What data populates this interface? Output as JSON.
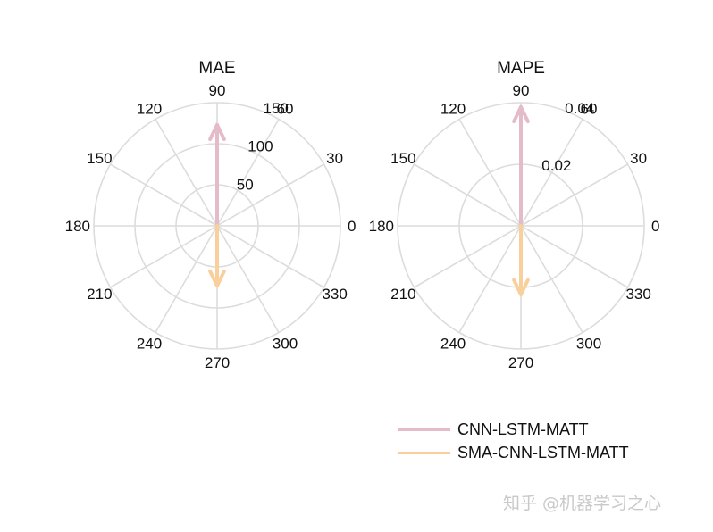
{
  "chart_data": [
    {
      "type": "polar-compass",
      "title": "MAE",
      "angle_ticks": [
        "0",
        "30",
        "60",
        "90",
        "120",
        "150",
        "180",
        "210",
        "240",
        "270",
        "300",
        "330"
      ],
      "radial_ticks": [
        "50",
        "100",
        "150"
      ],
      "rlim": [
        0,
        150
      ],
      "series": [
        {
          "name": "CNN-LSTM-MATT",
          "angle": 90,
          "value": 123,
          "color": "#e4bcc9"
        },
        {
          "name": "SMA-CNN-LSTM-MATT",
          "angle": 270,
          "value": 73,
          "color": "#f9cf9c"
        }
      ]
    },
    {
      "type": "polar-compass",
      "title": "MAPE",
      "angle_ticks": [
        "0",
        "30",
        "60",
        "90",
        "120",
        "150",
        "180",
        "210",
        "240",
        "270",
        "300",
        "330"
      ],
      "radial_ticks": [
        "0.02",
        "0.04"
      ],
      "rlim": [
        0,
        0.04
      ],
      "series": [
        {
          "name": "CNN-LSTM-MATT",
          "angle": 90,
          "value": 0.0386,
          "color": "#e4bcc9"
        },
        {
          "name": "SMA-CNN-LSTM-MATT",
          "angle": 270,
          "value": 0.0223,
          "color": "#f9cf9c"
        }
      ]
    }
  ],
  "legend": [
    {
      "label": "CNN-LSTM-MATT",
      "color": "#e4bcc9"
    },
    {
      "label": "SMA-CNN-LSTM-MATT",
      "color": "#f9cf9c"
    }
  ],
  "watermark": "知乎 @机器学习之心"
}
